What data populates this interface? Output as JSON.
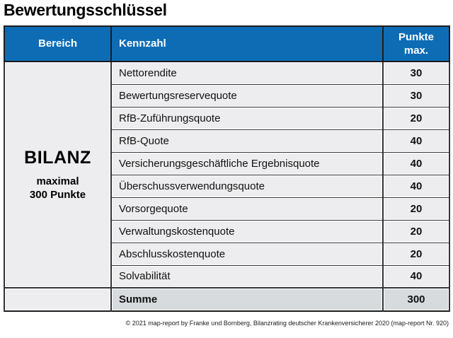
{
  "title": "Bewertungsschlüssel",
  "header": {
    "bereich": "Bereich",
    "kennzahl": "Kennzahl",
    "punkte_line1": "Punkte",
    "punkte_line2": "max."
  },
  "group": {
    "name": "BILANZ",
    "subtitle_line1": "maximal",
    "subtitle_line2": "300 Punkte"
  },
  "summary": {
    "label": "Summe",
    "punkte": "300"
  },
  "footer": "© 2021 map-report by Franke und Bornberg, Bilanzrating deutscher Krankenversicherer 2020 (map-report Nr. 920)",
  "colors": {
    "header_bg": "#0e6cb5",
    "header_text": "#ffffff",
    "row_bg": "#ededef",
    "summary_bg": "#d7dbdd",
    "border_dark": "#1c1c1c",
    "border_mid": "#333333"
  },
  "chart_data": {
    "type": "table",
    "title": "Bewertungsschlüssel",
    "columns": [
      "Bereich",
      "Kennzahl",
      "Punkte max."
    ],
    "group_label": "BILANZ",
    "group_note": "maximal 300 Punkte",
    "rows": [
      [
        "Nettorendite",
        "30"
      ],
      [
        "Bewertungsreservequote",
        "30"
      ],
      [
        "RfB-Zuführungsquote",
        "20"
      ],
      [
        "RfB-Quote",
        "40"
      ],
      [
        "Versicherungsgeschäftliche Ergebnisquote",
        "40"
      ],
      [
        "Überschussverwendungsquote",
        "40"
      ],
      [
        "Vorsorgequote",
        "20"
      ],
      [
        "Verwaltungskostenquote",
        "20"
      ],
      [
        "Abschlusskostenquote",
        "20"
      ],
      [
        "Solvabilität",
        "40"
      ]
    ],
    "summary_row": [
      "Summe",
      "300"
    ],
    "source": "© 2021 map-report by Franke und Bornberg, Bilanzrating deutscher Krankenversicherer 2020 (map-report Nr. 920)"
  }
}
